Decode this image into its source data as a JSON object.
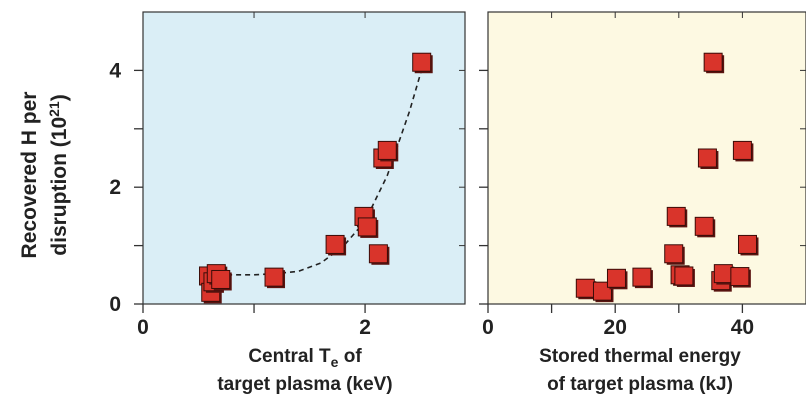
{
  "y_axis_label": {
    "line1": "Recovered H per",
    "line2_prefix": "disruption (10",
    "line2_sup": "21",
    "line2_suffix": ")"
  },
  "chart_data": [
    {
      "type": "scatter",
      "panel": "left",
      "background": "#daeef6",
      "marker_color": "#d9342b",
      "xlabel": {
        "line1_prefix": "Central T",
        "line1_sub": "e",
        "line1_suffix": " of",
        "line2": "target plasma (keV)"
      },
      "xlim": [
        0,
        2.9
      ],
      "ylim": [
        0,
        5
      ],
      "x_ticks": [
        0,
        1,
        2
      ],
      "x_tick_labels": [
        "0",
        "",
        "2"
      ],
      "y_ticks": [
        0,
        1,
        2,
        3,
        4
      ],
      "y_tick_labels": [
        "0",
        "",
        "2",
        "",
        "4"
      ],
      "points": [
        {
          "x": 0.59,
          "y": 0.48
        },
        {
          "x": 0.61,
          "y": 0.2
        },
        {
          "x": 0.63,
          "y": 0.38
        },
        {
          "x": 0.66,
          "y": 0.52
        },
        {
          "x": 0.7,
          "y": 0.42
        },
        {
          "x": 1.18,
          "y": 0.46
        },
        {
          "x": 1.73,
          "y": 1.02
        },
        {
          "x": 1.99,
          "y": 1.5
        },
        {
          "x": 2.02,
          "y": 1.32
        },
        {
          "x": 2.12,
          "y": 0.86
        },
        {
          "x": 2.16,
          "y": 2.5
        },
        {
          "x": 2.2,
          "y": 2.63
        },
        {
          "x": 2.51,
          "y": 4.14
        }
      ],
      "trend_line": {
        "style": "dashed",
        "points": [
          [
            0.6,
            0.42
          ],
          [
            0.8,
            0.5
          ],
          [
            1.0,
            0.5
          ],
          [
            1.2,
            0.52
          ],
          [
            1.4,
            0.56
          ],
          [
            1.6,
            0.7
          ],
          [
            1.8,
            0.98
          ],
          [
            2.0,
            1.42
          ],
          [
            2.2,
            2.2
          ],
          [
            2.4,
            3.3
          ],
          [
            2.52,
            4.08
          ]
        ]
      }
    },
    {
      "type": "scatter",
      "panel": "right",
      "background": "#fdf9e2",
      "marker_color": "#d9342b",
      "xlabel": {
        "line1": "Stored thermal energy",
        "line2": "of target plasma (kJ)"
      },
      "xlim": [
        0,
        50
      ],
      "ylim": [
        0,
        5
      ],
      "x_ticks": [
        0,
        10,
        20,
        30,
        40
      ],
      "x_tick_labels": [
        "0",
        "",
        "20",
        "",
        "40"
      ],
      "y_ticks": [
        0,
        1,
        2,
        3,
        4
      ],
      "points": [
        {
          "x": 15.3,
          "y": 0.27
        },
        {
          "x": 18.0,
          "y": 0.22
        },
        {
          "x": 20.2,
          "y": 0.44
        },
        {
          "x": 24.2,
          "y": 0.46
        },
        {
          "x": 29.2,
          "y": 0.86
        },
        {
          "x": 29.6,
          "y": 1.5
        },
        {
          "x": 30.2,
          "y": 0.5
        },
        {
          "x": 30.8,
          "y": 0.48
        },
        {
          "x": 34.0,
          "y": 1.33
        },
        {
          "x": 34.5,
          "y": 2.5
        },
        {
          "x": 35.4,
          "y": 4.14
        },
        {
          "x": 36.6,
          "y": 0.4
        },
        {
          "x": 37.0,
          "y": 0.52
        },
        {
          "x": 39.6,
          "y": 0.47
        },
        {
          "x": 40.0,
          "y": 2.63
        },
        {
          "x": 40.8,
          "y": 1.02
        }
      ]
    }
  ]
}
